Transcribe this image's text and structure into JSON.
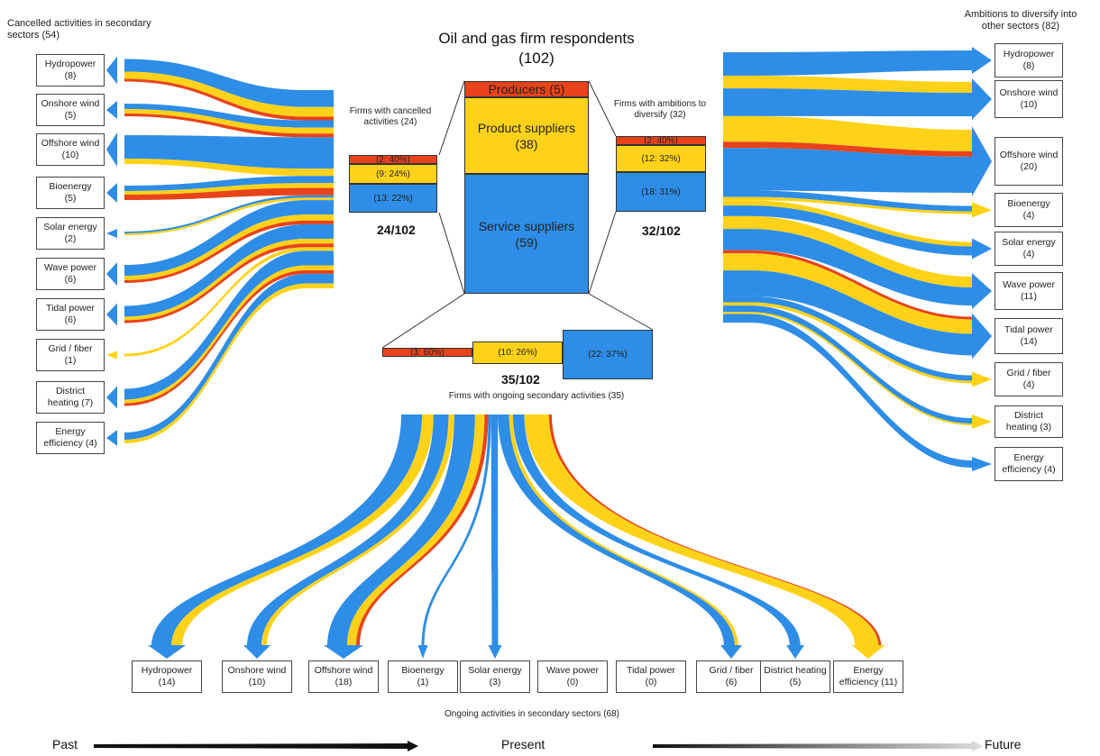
{
  "title": "Oil and gas firm respondents (102)",
  "colors": {
    "producers": "#e8431a",
    "product": "#ffd21a",
    "service": "#2e8de6"
  },
  "left": {
    "heading": "Cancelled activities in secondary sectors (54)",
    "items": [
      {
        "label": "Hydropower",
        "count": "(8)"
      },
      {
        "label": "Onshore wind",
        "count": "(5)"
      },
      {
        "label": "Offshore wind",
        "count": "(10)"
      },
      {
        "label": "Bioenergy",
        "count": "(5)"
      },
      {
        "label": "Solar energy",
        "count": "(2)"
      },
      {
        "label": "Wave power",
        "count": "(6)"
      },
      {
        "label": "Tidal power",
        "count": "(6)"
      },
      {
        "label": "Grid / fiber",
        "count": "(1)"
      },
      {
        "label": "District",
        "count": "heating (7)"
      },
      {
        "label": "Energy",
        "count": "efficiency (4)"
      }
    ]
  },
  "right": {
    "heading": "Ambitions to diversify into other sectors (82)",
    "items": [
      {
        "label": "Hydropower",
        "count": "(8)"
      },
      {
        "label": "Onshore wind",
        "count": "(10)"
      },
      {
        "label": "Offshore wind",
        "count": "(20)"
      },
      {
        "label": "Bioenergy",
        "count": "(4)"
      },
      {
        "label": "Solar energy",
        "count": "(4)"
      },
      {
        "label": "Wave power",
        "count": "(11)"
      },
      {
        "label": "Tidal power",
        "count": "(14)"
      },
      {
        "label": "Grid / fiber",
        "count": "(4)"
      },
      {
        "label": "District",
        "count": "heating (3)"
      },
      {
        "label": "Energy",
        "count": "efficiency (4)"
      }
    ]
  },
  "bottom": {
    "heading": "Ongoing activities in secondary sectors (68)",
    "items": [
      {
        "label": "Hydropower",
        "count": "(14)"
      },
      {
        "label": "Onshore wind",
        "count": "(10)"
      },
      {
        "label": "Offshore wind",
        "count": "(18)"
      },
      {
        "label": "Bioenergy",
        "count": "(1)"
      },
      {
        "label": "Solar energy",
        "count": "(3)"
      },
      {
        "label": "Wave power",
        "count": "(0)"
      },
      {
        "label": "Tidal power",
        "count": "(0)"
      },
      {
        "label": "Grid / fiber",
        "count": "(6)"
      },
      {
        "label": "District heating",
        "count": "(5)"
      },
      {
        "label": "Energy",
        "count": "efficiency (11)"
      }
    ]
  },
  "main": {
    "producers": "Producers (5)",
    "product": "Product suppliers",
    "product_count": "(38)",
    "service": "Service suppliers",
    "service_count": "(59)"
  },
  "cancelled": {
    "caption": "Firms with cancelled activities (24)",
    "seg1": "(2: 40%)",
    "seg2": "(9: 24%)",
    "seg3": "(13: 22%)",
    "ratio": "24/102"
  },
  "ambitions": {
    "caption": "Firms with ambitions to diversify (32)",
    "seg1": "(2: 40%)",
    "seg2": "(12: 32%)",
    "seg3": "(18: 31%)",
    "ratio": "32/102"
  },
  "ongoing": {
    "caption": "Firms with ongoing secondary activities (35)",
    "seg1": "(3: 60%)",
    "seg2": "(10: 26%)",
    "seg3": "(22: 37%)",
    "ratio": "35/102"
  },
  "timeline": {
    "past": "Past",
    "present": "Present",
    "future": "Future"
  }
}
